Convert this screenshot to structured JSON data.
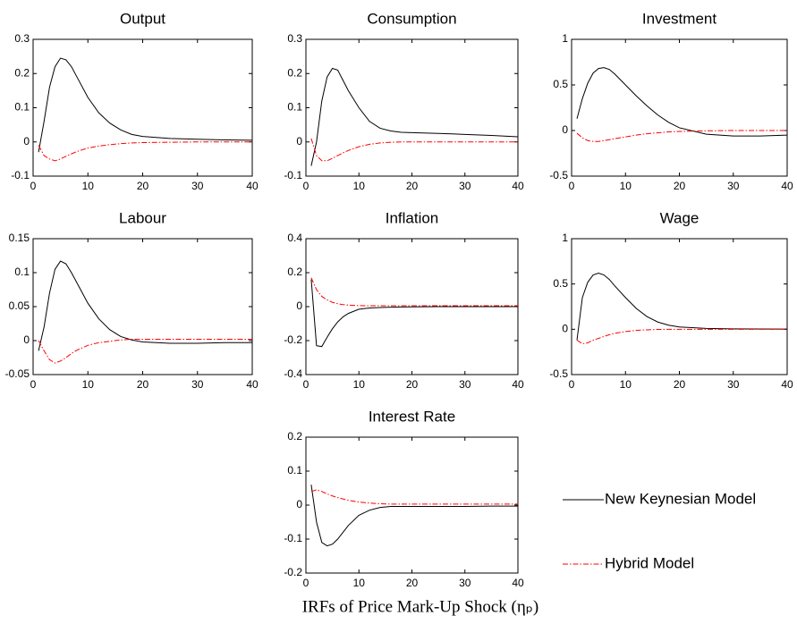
{
  "chart_data": [
    {
      "type": "line",
      "title": "Output",
      "x": [
        1,
        2,
        3,
        4,
        5,
        6,
        7,
        8,
        10,
        12,
        14,
        16,
        18,
        20,
        25,
        30,
        35,
        40
      ],
      "xlim": [
        0,
        40
      ],
      "xticks": [
        0,
        10,
        20,
        30,
        40
      ],
      "ylim": [
        -0.1,
        0.3
      ],
      "yticks": [
        -0.1,
        0,
        0.1,
        0.2,
        0.3
      ],
      "series": [
        {
          "name": "New Keynesian Model",
          "color": "#000000",
          "dash": "solid",
          "values": [
            -0.03,
            0.06,
            0.16,
            0.22,
            0.245,
            0.24,
            0.22,
            0.19,
            0.13,
            0.085,
            0.055,
            0.035,
            0.022,
            0.016,
            0.01,
            0.008,
            0.006,
            0.005
          ]
        },
        {
          "name": "Hybrid Model",
          "color": "#ff0000",
          "dash": "dashdot",
          "values": [
            -0.01,
            -0.04,
            -0.05,
            -0.055,
            -0.05,
            -0.042,
            -0.035,
            -0.028,
            -0.018,
            -0.012,
            -0.008,
            -0.005,
            -0.003,
            -0.002,
            -0.001,
            0,
            0,
            0
          ]
        }
      ]
    },
    {
      "type": "line",
      "title": "Consumption",
      "x": [
        1,
        2,
        3,
        4,
        5,
        6,
        7,
        8,
        10,
        12,
        14,
        16,
        18,
        20,
        25,
        30,
        35,
        40
      ],
      "xlim": [
        0,
        40
      ],
      "xticks": [
        0,
        10,
        20,
        30,
        40
      ],
      "ylim": [
        -0.1,
        0.3
      ],
      "yticks": [
        -0.1,
        0,
        0.1,
        0.2,
        0.3
      ],
      "series": [
        {
          "name": "New Keynesian Model",
          "color": "#000000",
          "dash": "solid",
          "values": [
            -0.07,
            0.0,
            0.12,
            0.19,
            0.215,
            0.21,
            0.18,
            0.15,
            0.1,
            0.06,
            0.04,
            0.032,
            0.028,
            0.027,
            0.025,
            0.022,
            0.019,
            0.015
          ]
        },
        {
          "name": "Hybrid Model",
          "color": "#ff0000",
          "dash": "dashdot",
          "values": [
            0.01,
            -0.04,
            -0.055,
            -0.055,
            -0.048,
            -0.04,
            -0.032,
            -0.025,
            -0.014,
            -0.007,
            -0.003,
            -0.001,
            0,
            0,
            0,
            0,
            0,
            0
          ]
        }
      ]
    },
    {
      "type": "line",
      "title": "Investment",
      "x": [
        1,
        2,
        3,
        4,
        5,
        6,
        7,
        8,
        10,
        12,
        14,
        16,
        18,
        20,
        25,
        30,
        35,
        40
      ],
      "xlim": [
        0,
        40
      ],
      "xticks": [
        0,
        10,
        20,
        30,
        40
      ],
      "ylim": [
        -0.5,
        1
      ],
      "yticks": [
        -0.5,
        0,
        0.5,
        1
      ],
      "series": [
        {
          "name": "New Keynesian Model",
          "color": "#000000",
          "dash": "solid",
          "values": [
            0.13,
            0.35,
            0.52,
            0.63,
            0.68,
            0.69,
            0.67,
            0.62,
            0.5,
            0.38,
            0.27,
            0.17,
            0.09,
            0.03,
            -0.04,
            -0.06,
            -0.06,
            -0.05
          ]
        },
        {
          "name": "Hybrid Model",
          "color": "#ff0000",
          "dash": "dashdot",
          "values": [
            -0.03,
            -0.08,
            -0.11,
            -0.12,
            -0.12,
            -0.11,
            -0.1,
            -0.09,
            -0.07,
            -0.05,
            -0.035,
            -0.025,
            -0.015,
            -0.01,
            -0.003,
            0,
            0,
            0
          ]
        }
      ]
    },
    {
      "type": "line",
      "title": "Labour",
      "x": [
        1,
        2,
        3,
        4,
        5,
        6,
        7,
        8,
        10,
        12,
        14,
        16,
        18,
        20,
        25,
        30,
        35,
        40
      ],
      "xlim": [
        0,
        40
      ],
      "xticks": [
        0,
        10,
        20,
        30,
        40
      ],
      "ylim": [
        -0.05,
        0.15
      ],
      "yticks": [
        -0.05,
        0,
        0.05,
        0.1,
        0.15
      ],
      "series": [
        {
          "name": "New Keynesian Model",
          "color": "#000000",
          "dash": "solid",
          "values": [
            -0.015,
            0.02,
            0.07,
            0.105,
            0.117,
            0.113,
            0.1,
            0.085,
            0.055,
            0.032,
            0.016,
            0.006,
            0.001,
            -0.002,
            -0.004,
            -0.004,
            -0.003,
            -0.003
          ]
        },
        {
          "name": "Hybrid Model",
          "color": "#ff0000",
          "dash": "dashdot",
          "values": [
            0,
            -0.015,
            -0.028,
            -0.033,
            -0.03,
            -0.025,
            -0.019,
            -0.014,
            -0.007,
            -0.003,
            -0.001,
            0.001,
            0.002,
            0.002,
            0.002,
            0.002,
            0.002,
            0.002
          ]
        }
      ]
    },
    {
      "type": "line",
      "title": "Inflation",
      "x": [
        1,
        2,
        3,
        4,
        5,
        6,
        7,
        8,
        10,
        12,
        14,
        16,
        18,
        20,
        25,
        30,
        35,
        40
      ],
      "xlim": [
        0,
        40
      ],
      "xticks": [
        0,
        10,
        20,
        30,
        40
      ],
      "ylim": [
        -0.4,
        0.4
      ],
      "yticks": [
        -0.4,
        -0.2,
        0,
        0.2,
        0.4
      ],
      "series": [
        {
          "name": "New Keynesian Model",
          "color": "#000000",
          "dash": "solid",
          "values": [
            0.16,
            -0.23,
            -0.235,
            -0.18,
            -0.13,
            -0.09,
            -0.06,
            -0.04,
            -0.015,
            -0.008,
            -0.005,
            -0.003,
            -0.002,
            -0.001,
            0,
            0,
            0,
            0
          ]
        },
        {
          "name": "Hybrid Model",
          "color": "#ff0000",
          "dash": "dashdot",
          "values": [
            0.17,
            0.1,
            0.06,
            0.04,
            0.025,
            0.017,
            0.012,
            0.009,
            0.006,
            0.005,
            0.005,
            0.005,
            0.005,
            0.005,
            0.005,
            0.005,
            0.005,
            0.005
          ]
        }
      ]
    },
    {
      "type": "line",
      "title": "Wage",
      "x": [
        1,
        2,
        3,
        4,
        5,
        6,
        7,
        8,
        10,
        12,
        14,
        16,
        18,
        20,
        25,
        30,
        35,
        40
      ],
      "xlim": [
        0,
        40
      ],
      "xticks": [
        0,
        10,
        20,
        30,
        40
      ],
      "ylim": [
        -0.5,
        1
      ],
      "yticks": [
        -0.5,
        0,
        0.5,
        1
      ],
      "series": [
        {
          "name": "New Keynesian Model",
          "color": "#000000",
          "dash": "solid",
          "values": [
            -0.12,
            0.35,
            0.52,
            0.6,
            0.62,
            0.6,
            0.55,
            0.48,
            0.35,
            0.23,
            0.14,
            0.08,
            0.045,
            0.025,
            0.01,
            0.005,
            0.003,
            0.002
          ]
        },
        {
          "name": "Hybrid Model",
          "color": "#ff0000",
          "dash": "dashdot",
          "values": [
            -0.12,
            -0.16,
            -0.15,
            -0.12,
            -0.1,
            -0.08,
            -0.06,
            -0.045,
            -0.025,
            -0.012,
            -0.006,
            -0.002,
            0,
            0,
            0,
            0,
            0,
            0
          ]
        }
      ]
    },
    {
      "type": "line",
      "title": "Interest Rate",
      "x": [
        1,
        2,
        3,
        4,
        5,
        6,
        7,
        8,
        10,
        12,
        14,
        16,
        18,
        20,
        25,
        30,
        35,
        40
      ],
      "xlim": [
        0,
        40
      ],
      "xticks": [
        0,
        10,
        20,
        30,
        40
      ],
      "ylim": [
        -0.2,
        0.2
      ],
      "yticks": [
        -0.2,
        -0.1,
        0,
        0.1,
        0.2
      ],
      "legend": "right",
      "series": [
        {
          "name": "New Keynesian Model",
          "color": "#000000",
          "dash": "solid",
          "values": [
            0.06,
            -0.05,
            -0.11,
            -0.12,
            -0.115,
            -0.1,
            -0.08,
            -0.06,
            -0.03,
            -0.015,
            -0.007,
            -0.004,
            -0.004,
            -0.004,
            -0.004,
            -0.004,
            -0.003,
            -0.003
          ]
        },
        {
          "name": "Hybrid Model",
          "color": "#ff0000",
          "dash": "dashdot",
          "values": [
            0.04,
            0.045,
            0.04,
            0.033,
            0.027,
            0.022,
            0.018,
            0.014,
            0.009,
            0.006,
            0.004,
            0.003,
            0.003,
            0.003,
            0.003,
            0.003,
            0.003,
            0.003
          ]
        }
      ]
    }
  ],
  "caption": "IRFs of Price Mark-Up Shock (ηₚ)"
}
